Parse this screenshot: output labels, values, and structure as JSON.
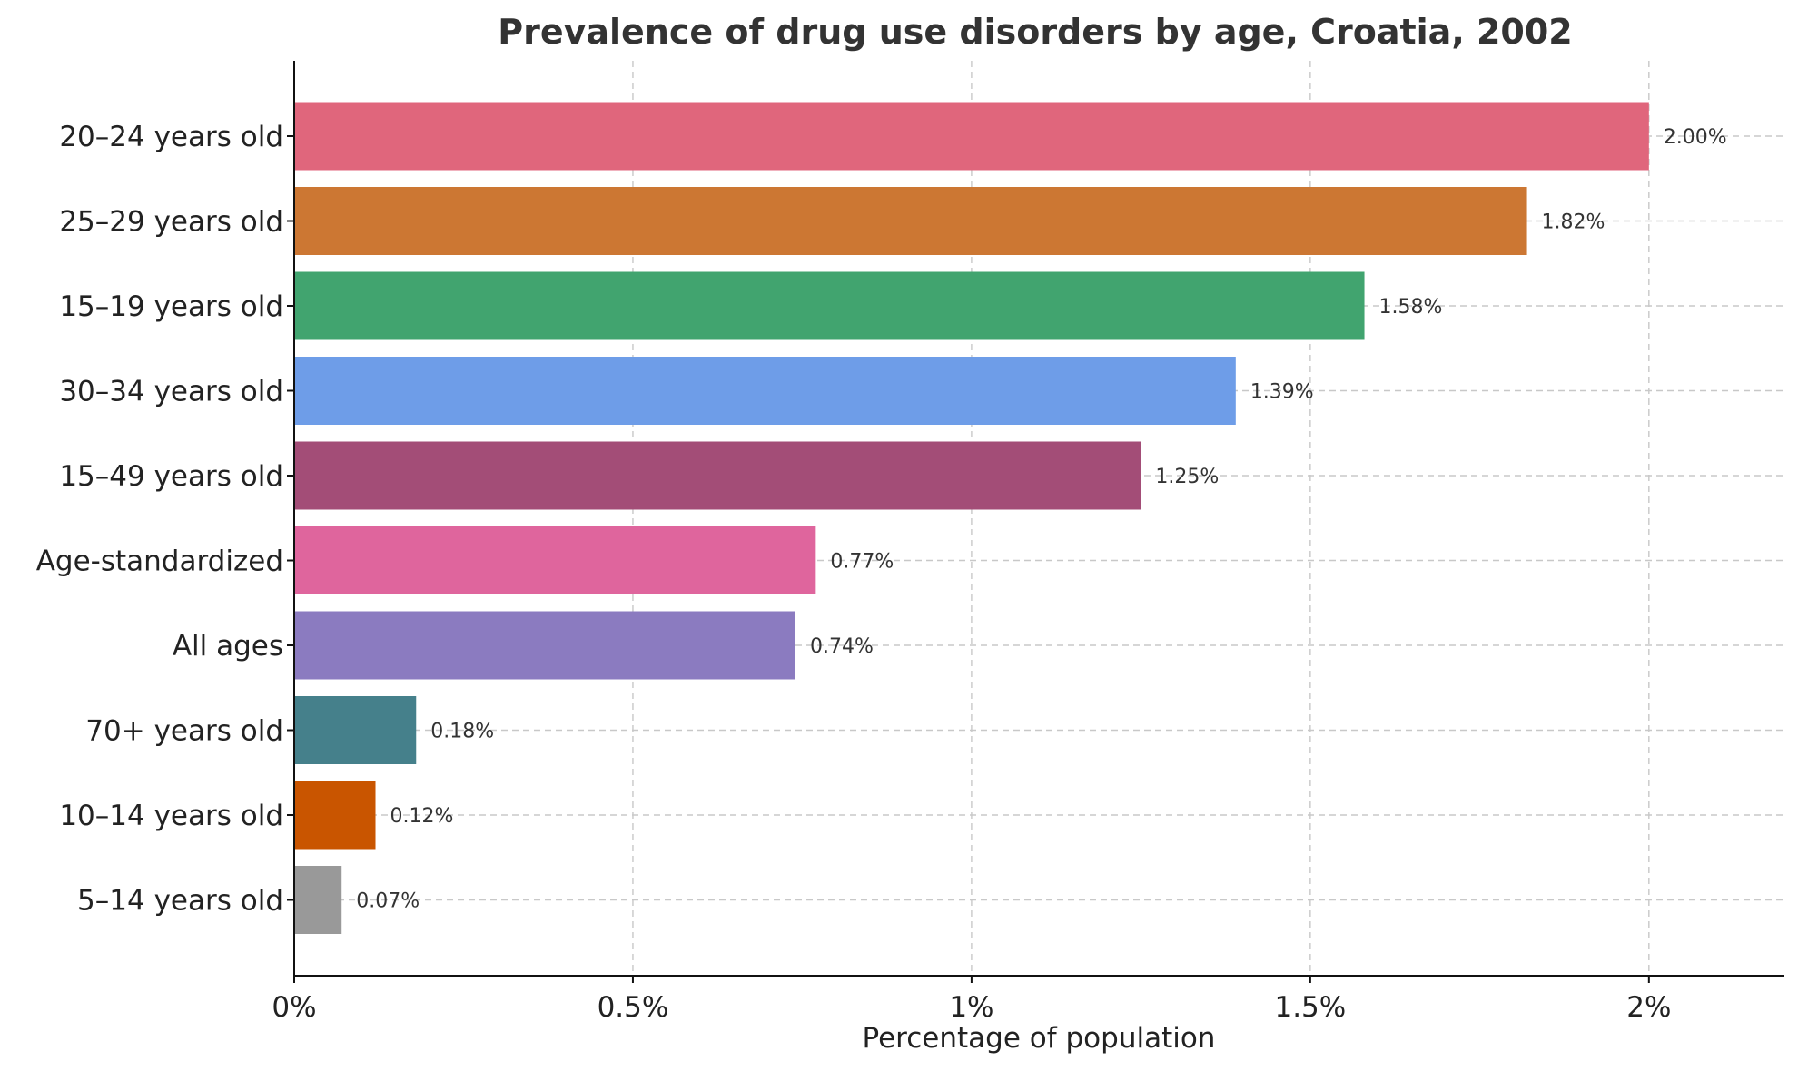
{
  "chart_data": {
    "type": "bar",
    "orientation": "horizontal",
    "title": "Prevalence of drug use disorders by age, Croatia, 2002",
    "xlabel": "Percentage of population",
    "ylabel": "",
    "xlim": [
      0,
      2.2
    ],
    "xticks": [
      0,
      0.5,
      1,
      1.5,
      2
    ],
    "xtick_labels": [
      "0%",
      "0.5%",
      "1%",
      "1.5%",
      "2%"
    ],
    "grid": true,
    "categories": [
      "20–24 years old",
      "25–29 years old",
      "15–19 years old",
      "30–34 years old",
      "15–49 years old",
      "Age-standardized",
      "All ages",
      "70+ years old",
      "10–14 years old",
      "5–14 years old"
    ],
    "values": [
      2.0,
      1.82,
      1.58,
      1.39,
      1.25,
      0.77,
      0.74,
      0.18,
      0.12,
      0.07
    ],
    "value_labels": [
      "2.00%",
      "1.82%",
      "1.58%",
      "1.39%",
      "1.25%",
      "0.77%",
      "0.74%",
      "0.18%",
      "0.12%",
      "0.07%"
    ],
    "colors": [
      "#e0667c",
      "#cc7733",
      "#41a46f",
      "#6e9de8",
      "#a34d77",
      "#df659d",
      "#8b7bc0",
      "#45808b",
      "#c95500",
      "#999999"
    ]
  }
}
